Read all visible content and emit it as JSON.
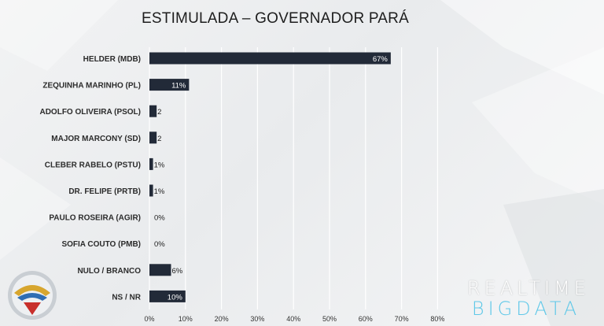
{
  "title": "ESTIMULADA – GOVERNADOR PARÁ",
  "chart_data": {
    "type": "bar",
    "orientation": "horizontal",
    "title": "ESTIMULADA – GOVERNADOR PARÁ",
    "categories": [
      "HELDER (MDB)",
      "ZEQUINHA MARINHO (PL)",
      "ADOLFO OLIVEIRA (PSOL)",
      "MAJOR MARCONY (SD)",
      "CLEBER RABELO (PSTU)",
      "DR. FELIPE (PRTB)",
      "PAULO ROSEIRA (AGIR)",
      "SOFIA COUTO (PMB)",
      "NULO / BRANCO",
      "NS / NR"
    ],
    "values": [
      67,
      11,
      2,
      2,
      1,
      1,
      0,
      0,
      6,
      10
    ],
    "value_labels": [
      "67%",
      "11%",
      "2",
      "2",
      "1%",
      "1%",
      "0%",
      "0%",
      "6%",
      "10%"
    ],
    "xlim": [
      0,
      80
    ],
    "x_ticks": [
      "0%",
      "10%",
      "20%",
      "30%",
      "40%",
      "50%",
      "60%",
      "70%",
      "80%"
    ],
    "grid": true,
    "bar_color": "#222a38"
  },
  "brand": {
    "line1": "REALTIME",
    "line2": "BIGDATA"
  },
  "colors": {
    "bar": "#222a38",
    "accent": "#5fc8e8"
  }
}
